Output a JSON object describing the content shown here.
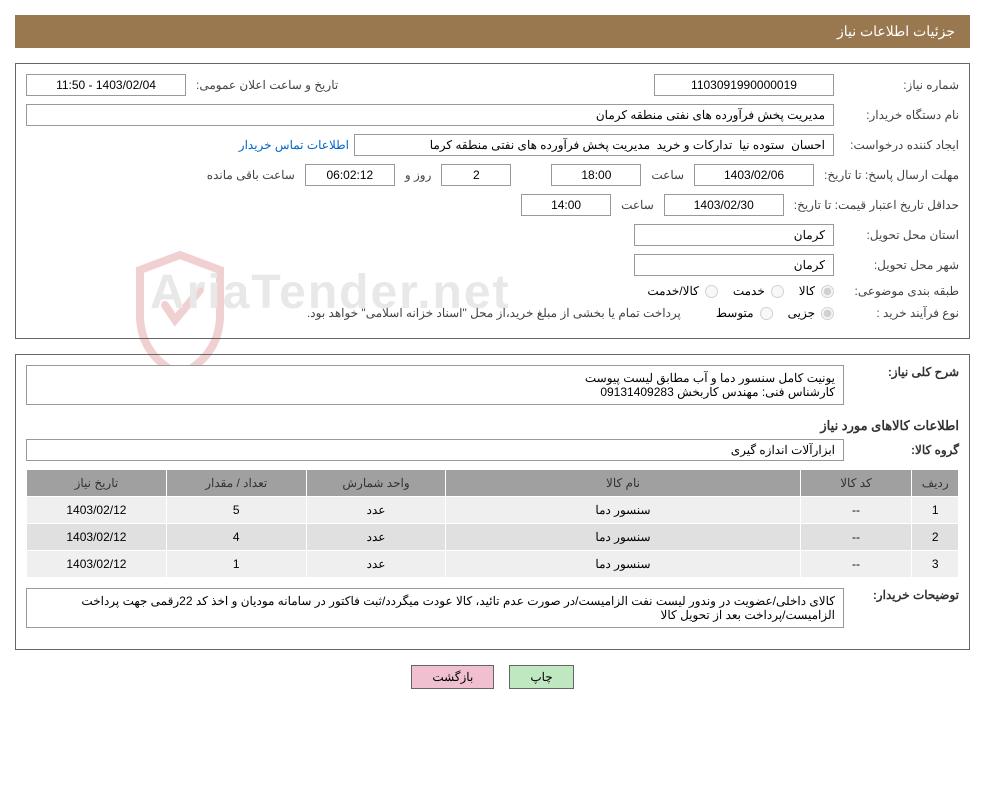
{
  "header": {
    "title": "جزئیات اطلاعات نیاز"
  },
  "need_info": {
    "need_number_label": "شماره نیاز:",
    "need_number": "1103091990000019",
    "announce_date_label": "تاریخ و ساعت اعلان عمومی:",
    "announce_date": "1403/02/04 - 11:50",
    "buyer_org_label": "نام دستگاه خریدار:",
    "buyer_org": "مدیریت پخش فرآورده های نفتی منطقه کرمان",
    "requester_label": "ایجاد کننده درخواست:",
    "requester": "احسان  ستوده نیا  تدارکات و خرید  مدیریت پخش فرآورده های نفتی منطقه کرما",
    "contact_link": "اطلاعات تماس خریدار",
    "deadline_label": "مهلت ارسال پاسخ:",
    "deadline_to_label": "تا تاریخ:",
    "deadline_date": "1403/02/06",
    "time_label": "ساعت",
    "deadline_time": "18:00",
    "days_and_label": "روز و",
    "days_remaining": "2",
    "time_remaining": "06:02:12",
    "remaining_label": "ساعت باقی مانده",
    "validity_label": "حداقل تاریخ اعتبار قیمت:",
    "validity_to_label": "تا تاریخ:",
    "validity_date": "1403/02/30",
    "validity_time": "14:00",
    "delivery_province_label": "استان محل تحویل:",
    "delivery_province": "کرمان",
    "delivery_city_label": "شهر محل تحویل:",
    "delivery_city": "کرمان",
    "category_label": "طبقه بندی موضوعی:",
    "category_goods": "کالا",
    "category_service": "خدمت",
    "category_both": "کالا/خدمت",
    "purchase_type_label": "نوع فرآیند خرید :",
    "purchase_type_partial": "جزیی",
    "purchase_type_medium": "متوسط",
    "payment_note": "پرداخت تمام یا بخشی از مبلغ خرید،از محل \"اسناد خزانه اسلامی\" خواهد بود."
  },
  "description": {
    "need_desc_label": "شرح کلی نیاز:",
    "need_desc": "یونیت کامل سنسور دما و آب مطابق لیست پیوست\nکارشناس فنی: مهندس کاربخش 09131409283"
  },
  "items_section": {
    "title": "اطلاعات کالاهای مورد نیاز",
    "group_label": "گروه کالا:",
    "group_value": "ابزارآلات اندازه گیری"
  },
  "table": {
    "columns": [
      "ردیف",
      "کد کالا",
      "نام کالا",
      "واحد شمارش",
      "تعداد / مقدار",
      "تاریخ نیاز"
    ],
    "col_widths": [
      "5%",
      "12%",
      "38%",
      "15%",
      "15%",
      "15%"
    ],
    "rows": [
      [
        "1",
        "--",
        "سنسور دما",
        "عدد",
        "5",
        "1403/02/12"
      ],
      [
        "2",
        "--",
        "سنسور دما",
        "عدد",
        "4",
        "1403/02/12"
      ],
      [
        "3",
        "--",
        "سنسور دما",
        "عدد",
        "1",
        "1403/02/12"
      ]
    ]
  },
  "buyer_notes": {
    "label": "توضیحات خریدار:",
    "text": "کالای داخلی/عضویت در وندور لیست نفت الزامیست/در صورت عدم تائید، کالا عودت میگردد/ثبت فاکتور در سامانه مودیان و اخذ کد 22رقمی جهت پرداخت الزامیست/پرداخت بعد از تحویل کالا"
  },
  "buttons": {
    "print": "چاپ",
    "back": "بازگشت"
  },
  "colors": {
    "header_bg": "#9a784f",
    "header_text": "#ffffff",
    "border": "#666666",
    "input_border": "#999999",
    "link": "#0066cc",
    "th_bg": "#a0a0a0",
    "td_bg": "#efefef",
    "td_alt_bg": "#e0e0e0",
    "btn_print_bg": "#c0e8c0",
    "btn_back_bg": "#f0c0d0",
    "watermark": "#e8e8e8"
  }
}
